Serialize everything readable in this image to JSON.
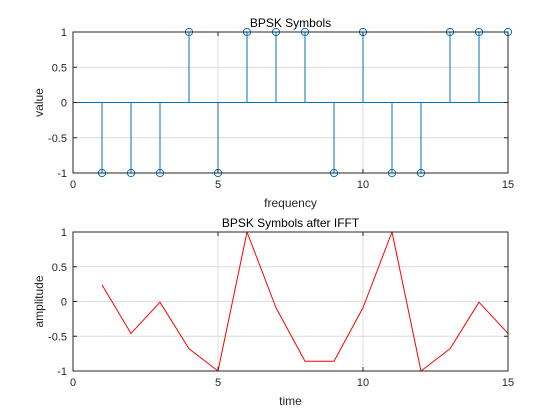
{
  "chart_data": [
    {
      "type": "stem",
      "title": "BPSK Symbols",
      "xlabel": "frequency",
      "ylabel": "value",
      "xlim": [
        0,
        15
      ],
      "ylim": [
        -1,
        1
      ],
      "xticks": [
        0,
        5,
        10,
        15
      ],
      "yticks": [
        -1,
        -0.5,
        0,
        0.5,
        1
      ],
      "xtick_labels": [
        "0",
        "5",
        "10",
        "15"
      ],
      "ytick_labels": [
        "-1",
        "-0.5",
        "0",
        "0.5",
        "1"
      ],
      "grid": true,
      "marker": "circle",
      "color": "#0072BD",
      "x": [
        1,
        2,
        3,
        4,
        5,
        6,
        7,
        8,
        9,
        10,
        11,
        12,
        13,
        14,
        15
      ],
      "y": [
        -1,
        -1,
        -1,
        1,
        -1,
        1,
        1,
        1,
        -1,
        1,
        -1,
        -1,
        1,
        1,
        1
      ]
    },
    {
      "type": "line",
      "title": "BPSK Symbols after IFFT",
      "xlabel": "time",
      "ylabel": "amplitude",
      "xlim": [
        0,
        15
      ],
      "ylim": [
        -1,
        1
      ],
      "xticks": [
        0,
        5,
        10,
        15
      ],
      "yticks": [
        -1,
        -0.5,
        0,
        0.5,
        1
      ],
      "xtick_labels": [
        "0",
        "5",
        "10",
        "15"
      ],
      "ytick_labels": [
        "-1",
        "-0.5",
        "0",
        "0.5",
        "1"
      ],
      "grid": true,
      "color": "#FF0000",
      "x": [
        1,
        2,
        3,
        4,
        5,
        6,
        7,
        8,
        9,
        10,
        11,
        12,
        13,
        14,
        15
      ],
      "y": [
        0.24,
        -0.46,
        -0.01,
        -0.68,
        -1.0,
        1.0,
        -0.09,
        -0.86,
        -0.86,
        -0.09,
        1.0,
        -1.0,
        -0.68,
        -0.01,
        -0.46
      ]
    }
  ]
}
